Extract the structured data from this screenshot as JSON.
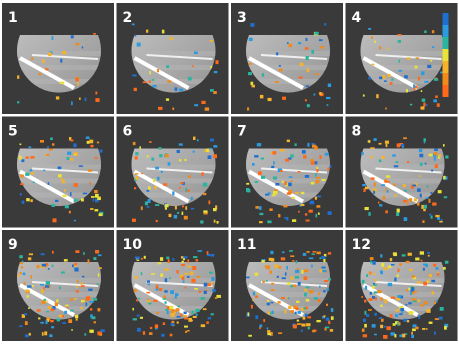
{
  "panels": [
    "1",
    "2",
    "3",
    "4",
    "5",
    "6",
    "7",
    "8",
    "9",
    "10",
    "11",
    "12"
  ]
}
